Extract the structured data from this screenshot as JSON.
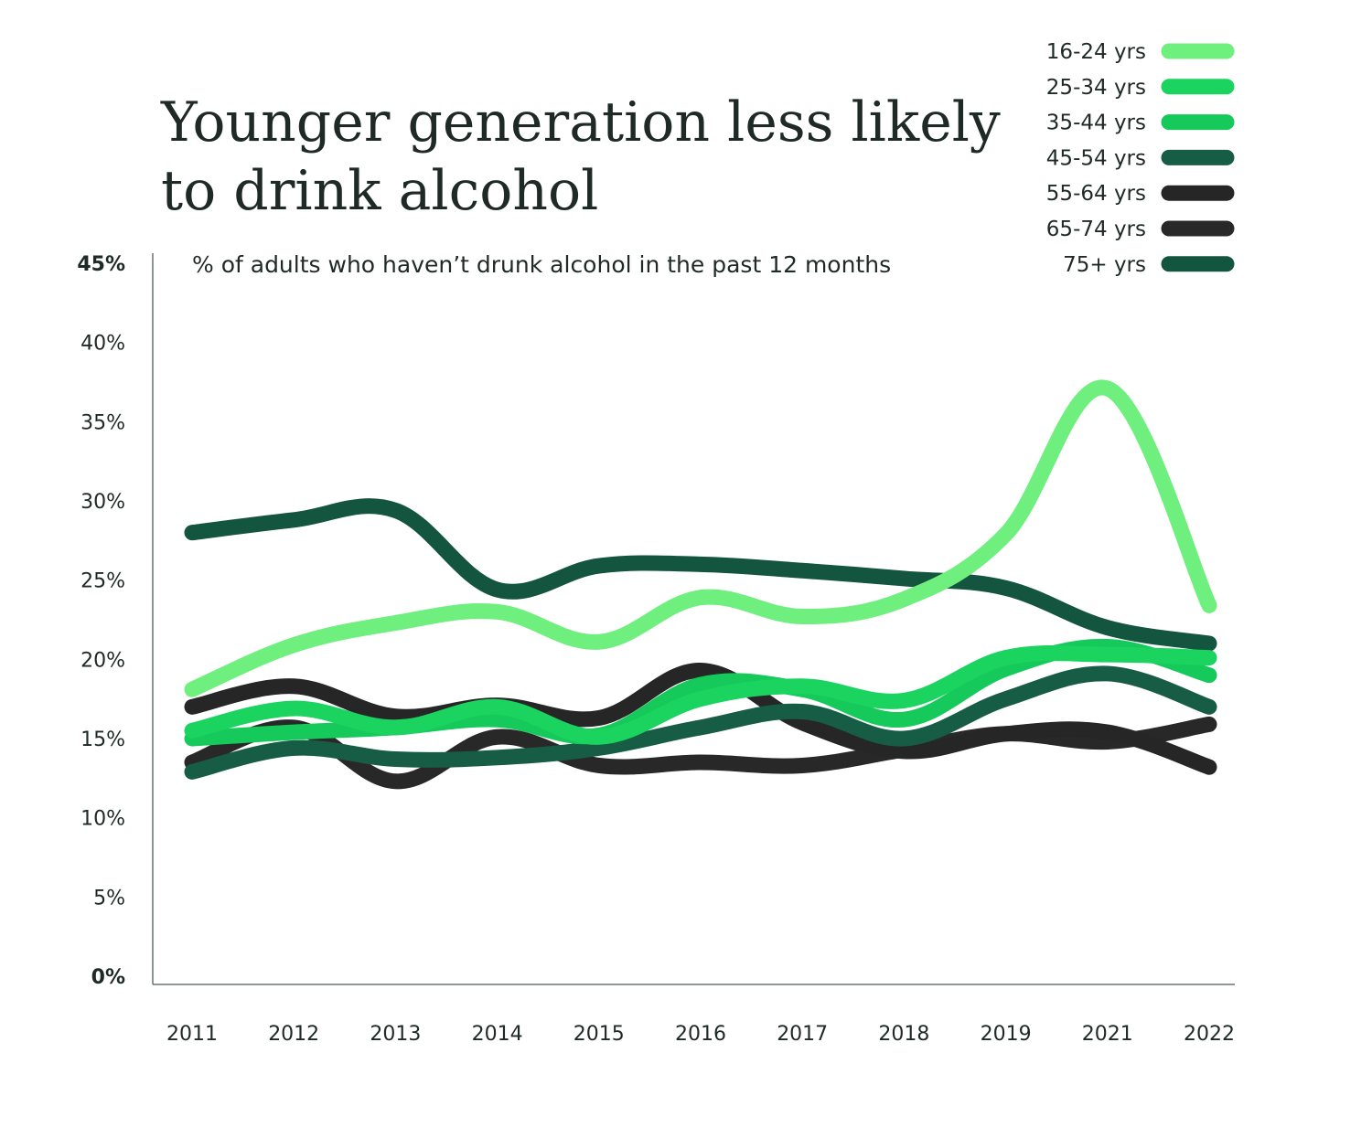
{
  "chart_data": {
    "type": "line",
    "title_lines": [
      "Younger generation less likely",
      "to drink alcohol"
    ],
    "subtitle": "% of adults who haven’t drunk alcohol in the past 12 months",
    "x": [
      "2011",
      "2012",
      "2013",
      "2014",
      "2015",
      "2016",
      "2017",
      "2018",
      "2019",
      "2021",
      "2022"
    ],
    "ylim": [
      0,
      45
    ],
    "y_ticks": [
      {
        "value": 45,
        "label": "45%",
        "bold": true
      },
      {
        "value": 40,
        "label": "40%",
        "bold": false
      },
      {
        "value": 35,
        "label": "35%",
        "bold": false
      },
      {
        "value": 30,
        "label": "30%",
        "bold": false
      },
      {
        "value": 25,
        "label": "25%",
        "bold": false
      },
      {
        "value": 20,
        "label": "20%",
        "bold": false
      },
      {
        "value": 15,
        "label": "15%",
        "bold": false
      },
      {
        "value": 10,
        "label": "10%",
        "bold": false
      },
      {
        "value": 5,
        "label": "5%",
        "bold": false
      },
      {
        "value": 0,
        "label": "0%",
        "bold": true
      }
    ],
    "legend_position": "top-right",
    "series": [
      {
        "name": "16-24 yrs",
        "color": "#6fef7e",
        "values": [
          18.1,
          20.9,
          22.3,
          23.0,
          21.1,
          23.9,
          22.7,
          23.8,
          27.9,
          37.1,
          23.4
        ]
      },
      {
        "name": "25-34 yrs",
        "color": "#1bd35f",
        "values": [
          15.5,
          16.9,
          15.7,
          17.0,
          15.1,
          17.5,
          18.3,
          17.4,
          20.1,
          20.3,
          20.1
        ]
      },
      {
        "name": "35-44 yrs",
        "color": "#15c95a",
        "values": [
          15.0,
          15.4,
          15.7,
          16.2,
          15.2,
          18.4,
          18.1,
          16.2,
          19.4,
          20.8,
          19.0
        ]
      },
      {
        "name": "45-54 yrs",
        "color": "#175c45",
        "values": [
          12.9,
          14.4,
          13.7,
          13.8,
          14.4,
          15.7,
          16.7,
          15.0,
          17.5,
          19.1,
          17.0
        ]
      },
      {
        "name": "55-64 yrs",
        "color": "#262626",
        "values": [
          17.0,
          18.3,
          16.4,
          17.1,
          16.3,
          19.3,
          16.0,
          14.2,
          15.3,
          15.4,
          13.2
        ]
      },
      {
        "name": "65-74 yrs",
        "color": "#282828",
        "values": [
          13.5,
          15.7,
          12.3,
          15.1,
          13.3,
          13.5,
          13.3,
          14.3,
          15.3,
          14.8,
          15.9
        ]
      },
      {
        "name": "75+ yrs",
        "color": "#13553f",
        "values": [
          28.0,
          28.8,
          29.4,
          24.4,
          25.9,
          26.0,
          25.6,
          25.1,
          24.5,
          22.0,
          21.0
        ]
      }
    ]
  }
}
